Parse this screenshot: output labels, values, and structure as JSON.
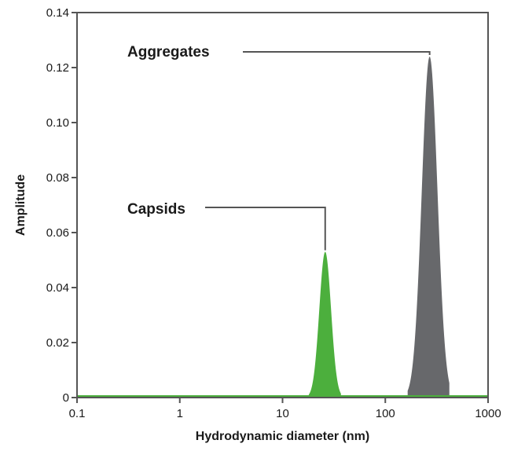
{
  "chart_data": {
    "type": "area",
    "xlabel": "Hydrodynamic diameter (nm)",
    "ylabel": "Amplitude",
    "x_scale": "log",
    "xlim": [
      0.1,
      1000
    ],
    "ylim": [
      0,
      0.14
    ],
    "x_ticks": [
      0.1,
      1,
      10,
      100,
      1000
    ],
    "x_tick_labels": [
      "0.1",
      "1",
      "10",
      "100",
      "1000"
    ],
    "y_ticks": [
      0,
      0.02,
      0.04,
      0.06,
      0.08,
      0.1,
      0.12,
      0.14
    ],
    "y_tick_labels": [
      "0",
      "0.02",
      "0.04",
      "0.06",
      "0.08",
      "0.10",
      "0.12",
      "0.14"
    ],
    "grid": false,
    "colors": {
      "capsids": "#4caf3d",
      "aggregates": "#67686b",
      "axis": "#555555",
      "baseline": "#4caf3d"
    },
    "series": [
      {
        "name": "Capsids",
        "color": "#4caf3d",
        "peak_x": 26,
        "peak_y": 0.053,
        "x_start": 18,
        "x_end": 37
      },
      {
        "name": "Aggregates",
        "color": "#67686b",
        "peak_x": 270,
        "peak_y": 0.124,
        "x_start": 165,
        "x_end": 420
      }
    ],
    "annotations": [
      {
        "text": "Aggregates",
        "target_series": "Aggregates"
      },
      {
        "text": "Capsids",
        "target_series": "Capsids"
      }
    ]
  }
}
